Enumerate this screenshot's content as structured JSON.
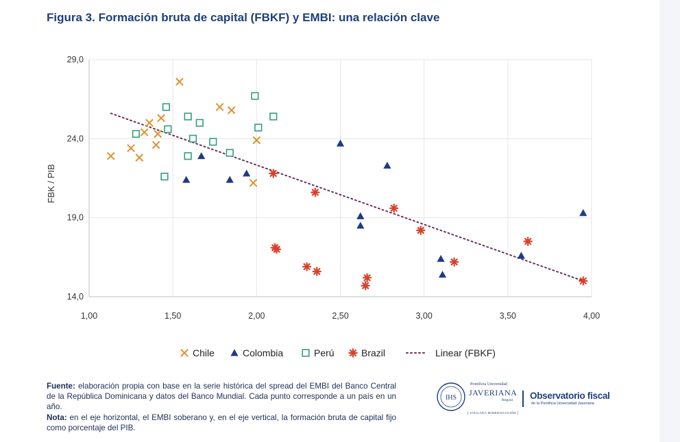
{
  "title": "Figura 3. Formación bruta de capital (FBKF) y EMBI: una relación clave",
  "colors": {
    "Chile": "#e0912b",
    "Colombia": "#1f3a8a",
    "Perú": "#2f9e7e",
    "Brazil": "#d9412b",
    "trend": "#6b2d5c"
  },
  "chart_data": {
    "type": "scatter",
    "xlabel": "",
    "ylabel": "FBK / PIB",
    "xlim": [
      1.0,
      4.0
    ],
    "ylim": [
      14.0,
      29.0
    ],
    "x_ticks": [
      "1,00",
      "1,50",
      "2,00",
      "2,50",
      "3,00",
      "3,50",
      "4,00"
    ],
    "x_tick_values": [
      1.0,
      1.5,
      2.0,
      2.5,
      3.0,
      3.5,
      4.0
    ],
    "y_ticks": [
      "14,0",
      "19,0",
      "24,0",
      "29,0"
    ],
    "y_tick_values": [
      14.0,
      19.0,
      24.0,
      29.0
    ],
    "grid": true,
    "legend_position": "bottom",
    "series": [
      {
        "name": "Chile",
        "marker": "x",
        "points": [
          [
            1.13,
            22.9
          ],
          [
            1.25,
            23.4
          ],
          [
            1.3,
            22.8
          ],
          [
            1.33,
            24.4
          ],
          [
            1.36,
            25.0
          ],
          [
            1.4,
            23.6
          ],
          [
            1.41,
            24.3
          ],
          [
            1.43,
            25.3
          ],
          [
            1.54,
            27.6
          ],
          [
            1.78,
            26.0
          ],
          [
            1.85,
            25.8
          ],
          [
            1.98,
            21.2
          ],
          [
            2.0,
            23.9
          ]
        ]
      },
      {
        "name": "Colombia",
        "marker": "triangle",
        "points": [
          [
            1.58,
            21.4
          ],
          [
            1.67,
            22.9
          ],
          [
            1.84,
            21.4
          ],
          [
            1.94,
            21.8
          ],
          [
            2.5,
            23.7
          ],
          [
            2.62,
            19.1
          ],
          [
            2.62,
            18.5
          ],
          [
            2.78,
            22.3
          ],
          [
            3.1,
            16.4
          ],
          [
            3.11,
            15.4
          ],
          [
            3.58,
            16.6
          ],
          [
            3.95,
            19.3
          ]
        ]
      },
      {
        "name": "Perú",
        "marker": "square",
        "points": [
          [
            1.28,
            24.3
          ],
          [
            1.45,
            21.6
          ],
          [
            1.46,
            26.0
          ],
          [
            1.47,
            24.6
          ],
          [
            1.59,
            25.4
          ],
          [
            1.59,
            22.9
          ],
          [
            1.62,
            24.0
          ],
          [
            1.66,
            25.0
          ],
          [
            1.74,
            23.8
          ],
          [
            1.84,
            23.1
          ],
          [
            1.99,
            26.7
          ],
          [
            2.01,
            24.7
          ],
          [
            2.1,
            25.4
          ]
        ]
      },
      {
        "name": "Brazil",
        "marker": "star",
        "points": [
          [
            2.1,
            21.8
          ],
          [
            2.11,
            17.1
          ],
          [
            2.12,
            17.0
          ],
          [
            2.3,
            15.9
          ],
          [
            2.35,
            20.6
          ],
          [
            2.36,
            15.6
          ],
          [
            2.65,
            14.7
          ],
          [
            2.66,
            15.2
          ],
          [
            2.82,
            19.6
          ],
          [
            2.98,
            18.2
          ],
          [
            3.18,
            16.2
          ],
          [
            3.62,
            17.5
          ],
          [
            3.95,
            15.0
          ]
        ]
      }
    ],
    "trendline": {
      "name": "Linear (FBKF)",
      "x": [
        1.13,
        3.95
      ],
      "y": [
        25.6,
        15.0
      ]
    }
  },
  "footer": {
    "source_label": "Fuente:",
    "source_text": " elaboración propia con base en la serie histórica del spread del EMBI del Banco Central de la República Dominicana y datos del Banco Mundial. Cada punto corresponde a un país en un año.",
    "note_label": "Nota:",
    "note_text": " en el eje horizontal, el EMBI soberano y, en el eje vertical, la formación bruta de capital fijo como porcentaje del PIB."
  },
  "logos": {
    "uni_small": "Pontificia Universidad",
    "uni_name": "JAVERIANA",
    "uni_city": "Bogotá",
    "uni_tag": "[ VIGILADA MINEDUCACIÓN ]",
    "seal_text": "IHS",
    "obs_title": "Observatorio fiscal",
    "obs_sub": "de la Pontificia Universidad Javeriana"
  }
}
